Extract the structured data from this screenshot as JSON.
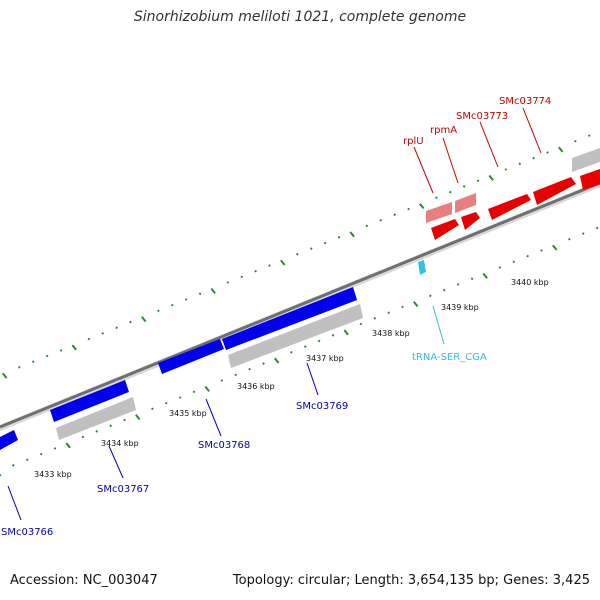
{
  "title": "Sinorhizobium meliloti 1021, complete genome",
  "footer": {
    "accession": "Accession: NC_003047",
    "topology": "Topology: circular; Length: 3,654,135 bp; Genes: 3,425"
  },
  "colors": {
    "forward_gene": "#e00000",
    "forward_gene_light": "#e87f7f",
    "reverse_gene": "#0000dd",
    "cds_gray": "#c0c0c0",
    "backbone": "#777777",
    "tick": "#2a8a2a",
    "trna": "#33c3e8",
    "forward_label": "#cc0000",
    "reverse_label": "#0000bb",
    "trna_label": "#33bbdd"
  },
  "ruler_labels": [
    "3433 kbp",
    "3434 kbp",
    "3435 kbp",
    "3436 kbp",
    "3437 kbp",
    "3438 kbp",
    "3439 kbp",
    "3440 kbp"
  ],
  "forward_genes": [
    "rplU",
    "rpmA",
    "SMc03773",
    "SMc03774"
  ],
  "reverse_genes": [
    "SMc03766",
    "SMc03767",
    "SMc03768",
    "SMc03769"
  ],
  "trna": "tRNA-SER_CGA"
}
